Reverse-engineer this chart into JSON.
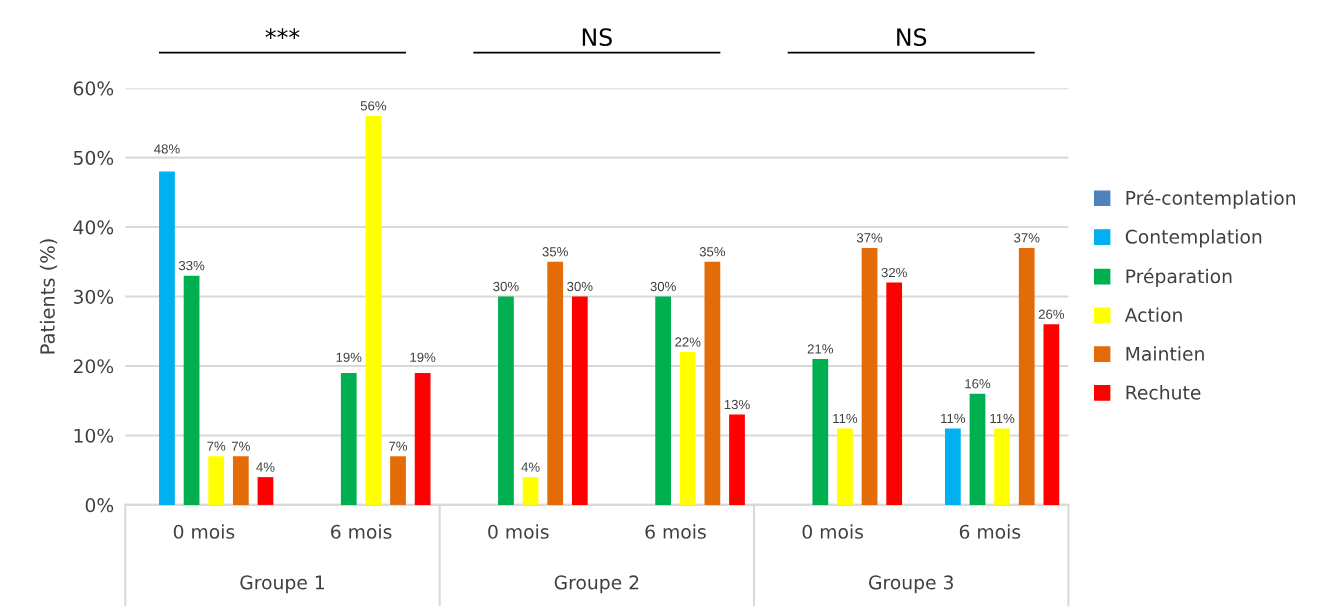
{
  "chart_data": {
    "type": "bar",
    "ylabel": "Patients (%)",
    "categories": [
      "0 mois",
      "6 mois",
      "0 mois",
      "6 mois",
      "0 mois",
      "6 mois"
    ],
    "series": [
      {
        "name": "Pré-contemplation",
        "color": "#4f81bd",
        "values": [
          null,
          null,
          null,
          null,
          null,
          null
        ],
        "value_labels": [
          null,
          null,
          null,
          null,
          null,
          null
        ]
      },
      {
        "name": "Contemplation",
        "color": "#00b0f0",
        "values": [
          48,
          null,
          null,
          null,
          null,
          11
        ],
        "value_labels": [
          "48%",
          null,
          null,
          null,
          null,
          "11%"
        ]
      },
      {
        "name": "Préparation",
        "color": "#00b050",
        "values": [
          33,
          19,
          30,
          30,
          21,
          16
        ],
        "value_labels": [
          "33%",
          "19%",
          "30%",
          "30%",
          "21%",
          "16%"
        ]
      },
      {
        "name": "Action",
        "color": "#ffff00",
        "values": [
          7,
          56,
          4,
          22,
          11,
          11
        ],
        "value_labels": [
          "7%",
          "56%",
          "4%",
          "22%",
          "11%",
          "11%"
        ]
      },
      {
        "name": "Maintien",
        "color": "#e36c09",
        "values": [
          7,
          7,
          35,
          35,
          37,
          37
        ],
        "value_labels": [
          "7%",
          "7%",
          "35%",
          "35%",
          "37%",
          "37%"
        ]
      },
      {
        "name": "Rechute",
        "color": "#ff0000",
        "values": [
          4,
          19,
          30,
          13,
          32,
          26
        ],
        "value_labels": [
          "4%",
          "19%",
          "30%",
          "13%",
          "32%",
          "26%"
        ]
      }
    ],
    "ylim": [
      0,
      60
    ],
    "yticks": [
      {
        "value": 0,
        "label": "0%"
      },
      {
        "value": 10,
        "label": "10%"
      },
      {
        "value": 20,
        "label": "20%"
      },
      {
        "value": 30,
        "label": "30%"
      },
      {
        "value": 40,
        "label": "40%"
      },
      {
        "value": 50,
        "label": "50%"
      },
      {
        "value": 60,
        "label": "60%"
      }
    ],
    "grid": "y",
    "legend": "right",
    "annotations": [
      "***",
      "NS",
      "NS",
      "Groupe 1",
      "Groupe 2",
      "Groupe 3"
    ]
  }
}
